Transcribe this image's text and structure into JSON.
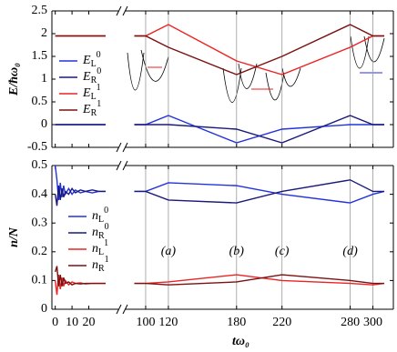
{
  "chart_data": [
    {
      "type": "line",
      "y_label": "E/ħω₀",
      "x": [
        0,
        30,
        90,
        100,
        120,
        180,
        220,
        280,
        300,
        310
      ],
      "series": [
        {
          "name": {
            "base": "E",
            "sub": "L",
            "sup": "0"
          },
          "color": "#2233dd",
          "values": [
            0,
            0,
            0,
            0,
            0.2,
            -0.4,
            -0.1,
            0,
            0,
            0
          ]
        },
        {
          "name": {
            "base": "E",
            "sub": "R",
            "sup": "0"
          },
          "color": "#1a1a7a",
          "values": [
            0,
            0,
            0,
            0,
            0,
            -0.1,
            -0.4,
            0.2,
            0,
            0
          ]
        },
        {
          "name": {
            "base": "E",
            "sub": "L",
            "sup": "1"
          },
          "color": "#ee2222",
          "values": [
            1.95,
            1.95,
            1.95,
            1.95,
            2.2,
            1.4,
            1.1,
            1.7,
            1.95,
            1.95
          ]
        },
        {
          "name": {
            "base": "E",
            "sub": "R",
            "sup": "1"
          },
          "color": "#7a1010",
          "values": [
            1.95,
            1.95,
            1.95,
            1.95,
            1.7,
            1.1,
            1.5,
            2.2,
            1.95,
            1.95
          ]
        }
      ],
      "xlim": [
        -2,
        318
      ],
      "xbreak": [
        36,
        84
      ],
      "xticks": [
        0,
        10,
        20,
        100,
        120,
        180,
        220,
        280,
        300
      ],
      "ylim": [
        -0.5,
        2.5
      ],
      "yticks": [
        -0.5,
        0,
        0.5,
        1,
        1.5,
        2,
        2.5
      ]
    },
    {
      "type": "line",
      "y_label": "n/N",
      "x_label": "tω₀",
      "x": [
        0,
        1,
        2,
        3,
        4,
        5,
        6,
        8,
        10,
        12,
        15,
        18,
        22,
        26,
        30,
        90,
        100,
        120,
        180,
        220,
        280,
        300,
        310
      ],
      "series": [
        {
          "name": {
            "base": "n",
            "sub": "L",
            "sup": "0"
          },
          "color": "#2233dd",
          "values": [
            0.5,
            0.45,
            0.38,
            0.44,
            0.39,
            0.43,
            0.4,
            0.42,
            0.4,
            0.415,
            0.405,
            0.41,
            0.405,
            0.41,
            0.41,
            0.41,
            0.41,
            0.44,
            0.43,
            0.4,
            0.37,
            0.4,
            0.41
          ]
        },
        {
          "name": {
            "base": "n",
            "sub": "R",
            "sup": "0"
          },
          "color": "#1a1a7a",
          "values": [
            0.4,
            0.36,
            0.43,
            0.38,
            0.42,
            0.39,
            0.41,
            0.4,
            0.42,
            0.405,
            0.415,
            0.41,
            0.415,
            0.41,
            0.41,
            0.41,
            0.41,
            0.38,
            0.37,
            0.41,
            0.45,
            0.41,
            0.41
          ]
        },
        {
          "name": {
            "base": "n",
            "sub": "L",
            "sup": "1"
          },
          "color": "#ee2222",
          "values": [
            0.1,
            0.05,
            0.12,
            0.07,
            0.11,
            0.08,
            0.1,
            0.085,
            0.095,
            0.09,
            0.092,
            0.088,
            0.09,
            0.09,
            0.09,
            0.09,
            0.09,
            0.095,
            0.12,
            0.1,
            0.09,
            0.085,
            0.09
          ]
        },
        {
          "name": {
            "base": "n",
            "sub": "R",
            "sup": "1"
          },
          "color": "#7a1010",
          "values": [
            0.13,
            0.15,
            0.08,
            0.12,
            0.08,
            0.11,
            0.09,
            0.095,
            0.085,
            0.09,
            0.088,
            0.09,
            0.09,
            0.09,
            0.09,
            0.09,
            0.09,
            0.085,
            0.095,
            0.12,
            0.1,
            0.09,
            0.09
          ]
        }
      ],
      "annotations": [
        {
          "text": "(a)",
          "x": 120,
          "y": 0.2
        },
        {
          "text": "(b)",
          "x": 180,
          "y": 0.2
        },
        {
          "text": "(c)",
          "x": 220,
          "y": 0.2
        },
        {
          "text": "(d)",
          "x": 280,
          "y": 0.2
        }
      ],
      "xlim": [
        -2,
        318
      ],
      "xbreak": [
        36,
        84
      ],
      "xticks": [
        0,
        10,
        20,
        100,
        120,
        180,
        220,
        280,
        300
      ],
      "ylim": [
        0,
        0.5
      ],
      "yticks": [
        0,
        0.1,
        0.2,
        0.3,
        0.4,
        0.5
      ]
    }
  ]
}
